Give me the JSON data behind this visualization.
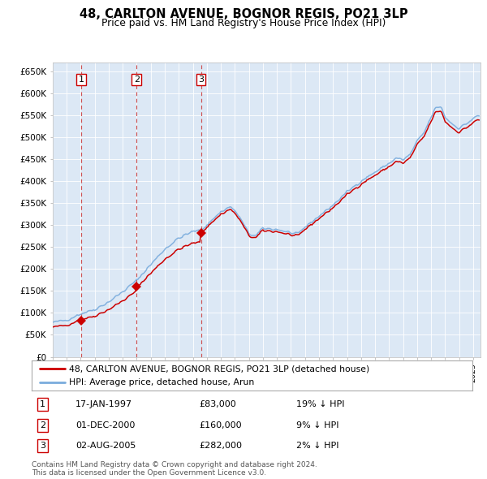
{
  "title": "48, CARLTON AVENUE, BOGNOR REGIS, PO21 3LP",
  "subtitle": "Price paid vs. HM Land Registry's House Price Index (HPI)",
  "legend_line1": "48, CARLTON AVENUE, BOGNOR REGIS, PO21 3LP (detached house)",
  "legend_line2": "HPI: Average price, detached house, Arun",
  "purchases": [
    {
      "date": 1997.04,
      "price": 83000,
      "label": "1"
    },
    {
      "date": 2001.0,
      "price": 160000,
      "label": "2"
    },
    {
      "date": 2005.58,
      "price": 282000,
      "label": "3"
    }
  ],
  "purchase_dates_str": [
    "17-JAN-1997",
    "01-DEC-2000",
    "02-AUG-2005"
  ],
  "purchase_prices_str": [
    "£83,000",
    "£160,000",
    "£282,000"
  ],
  "pcts": [
    "19% ↓ HPI",
    "9% ↓ HPI",
    "2% ↓ HPI"
  ],
  "ylim": [
    0,
    670000
  ],
  "xlim": [
    1995.0,
    2025.5
  ],
  "background_color": "#dce8f5",
  "grid_color": "#ffffff",
  "hpi_color": "#7aacdd",
  "price_color": "#cc0000",
  "vline_color": "#cc4444",
  "footer_text": "Contains HM Land Registry data © Crown copyright and database right 2024.\nThis data is licensed under the Open Government Licence v3.0.",
  "yticks": [
    0,
    50000,
    100000,
    150000,
    200000,
    250000,
    300000,
    350000,
    400000,
    450000,
    500000,
    550000,
    600000,
    650000
  ],
  "ytick_labels": [
    "£0",
    "£50K",
    "£100K",
    "£150K",
    "£200K",
    "£250K",
    "£300K",
    "£350K",
    "£400K",
    "£450K",
    "£500K",
    "£550K",
    "£600K",
    "£650K"
  ]
}
